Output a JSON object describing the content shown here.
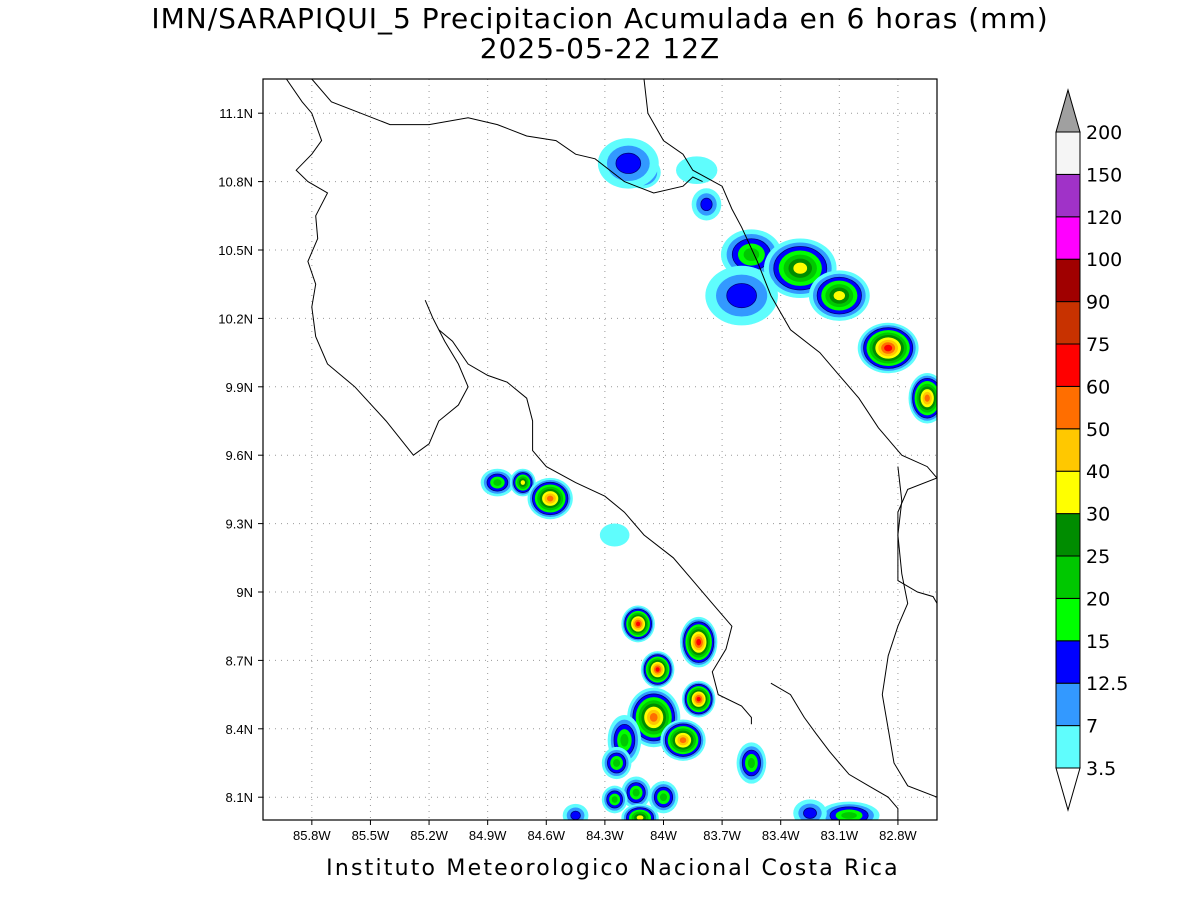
{
  "title": "IMN/SARAPIQUI_5 Precipitacion Acumulada en 6 horas (mm)",
  "subtitle": "2025-05-22 12Z",
  "footer": "Instituto Meteorologico Nacional Costa Rica",
  "map": {
    "lon_range": [
      -86.05,
      -82.6
    ],
    "lat_range": [
      8.0,
      11.25
    ],
    "x_ticks": [
      {
        "lon": -85.8,
        "label": "85.8W"
      },
      {
        "lon": -85.5,
        "label": "85.5W"
      },
      {
        "lon": -85.2,
        "label": "85.2W"
      },
      {
        "lon": -84.9,
        "label": "84.9W"
      },
      {
        "lon": -84.6,
        "label": "84.6W"
      },
      {
        "lon": -84.3,
        "label": "84.3W"
      },
      {
        "lon": -84.0,
        "label": "84W"
      },
      {
        "lon": -83.7,
        "label": "83.7W"
      },
      {
        "lon": -83.4,
        "label": "83.4W"
      },
      {
        "lon": -83.1,
        "label": "83.1W"
      },
      {
        "lon": -82.8,
        "label": "82.8W"
      }
    ],
    "y_ticks": [
      {
        "lat": 11.1,
        "label": "11.1N"
      },
      {
        "lat": 10.8,
        "label": "10.8N"
      },
      {
        "lat": 10.5,
        "label": "10.5N"
      },
      {
        "lat": 10.2,
        "label": "10.2N"
      },
      {
        "lat": 9.9,
        "label": "9.9N"
      },
      {
        "lat": 9.6,
        "label": "9.6N"
      },
      {
        "lat": 9.3,
        "label": "9.3N"
      },
      {
        "lat": 9.0,
        "label": "9N"
      },
      {
        "lat": 8.7,
        "label": "8.7N"
      },
      {
        "lat": 8.4,
        "label": "8.4N"
      },
      {
        "lat": 8.1,
        "label": "8.1N"
      }
    ],
    "grid": "dotted",
    "coastlines": [
      [
        [
          -85.93,
          11.25
        ],
        [
          -85.85,
          11.15
        ],
        [
          -85.8,
          11.1
        ],
        [
          -85.75,
          10.98
        ],
        [
          -85.8,
          10.92
        ],
        [
          -85.88,
          10.85
        ],
        [
          -85.82,
          10.8
        ],
        [
          -85.72,
          10.75
        ],
        [
          -85.78,
          10.65
        ],
        [
          -85.77,
          10.55
        ],
        [
          -85.82,
          10.45
        ],
        [
          -85.78,
          10.35
        ],
        [
          -85.8,
          10.25
        ],
        [
          -85.78,
          10.12
        ],
        [
          -85.72,
          10.0
        ],
        [
          -85.58,
          9.9
        ],
        [
          -85.42,
          9.75
        ],
        [
          -85.28,
          9.6
        ],
        [
          -85.2,
          9.65
        ],
        [
          -85.15,
          9.75
        ],
        [
          -85.05,
          9.82
        ],
        [
          -85.0,
          9.9
        ],
        [
          -85.05,
          10.0
        ],
        [
          -85.12,
          10.1
        ],
        [
          -85.18,
          10.2
        ],
        [
          -85.22,
          10.28
        ]
      ],
      [
        [
          -85.15,
          10.15
        ],
        [
          -85.08,
          10.1
        ],
        [
          -85.0,
          10.0
        ],
        [
          -84.9,
          9.95
        ],
        [
          -84.8,
          9.92
        ],
        [
          -84.7,
          9.85
        ],
        [
          -84.67,
          9.75
        ],
        [
          -84.67,
          9.62
        ],
        [
          -84.6,
          9.55
        ],
        [
          -84.45,
          9.48
        ],
        [
          -84.3,
          9.42
        ],
        [
          -84.2,
          9.35
        ],
        [
          -84.1,
          9.25
        ],
        [
          -83.95,
          9.15
        ],
        [
          -83.85,
          9.05
        ],
        [
          -83.75,
          8.95
        ],
        [
          -83.65,
          8.85
        ],
        [
          -83.68,
          8.75
        ],
        [
          -83.75,
          8.65
        ],
        [
          -83.72,
          8.55
        ],
        [
          -83.6,
          8.5
        ],
        [
          -83.55,
          8.45
        ],
        [
          -83.55,
          8.42
        ]
      ],
      [
        [
          -83.45,
          8.6
        ],
        [
          -83.35,
          8.55
        ],
        [
          -83.28,
          8.45
        ],
        [
          -83.22,
          8.38
        ],
        [
          -83.15,
          8.3
        ],
        [
          -83.1,
          8.25
        ],
        [
          -83.05,
          8.2
        ],
        [
          -82.95,
          8.15
        ],
        [
          -82.85,
          8.1
        ],
        [
          -82.8,
          8.05
        ],
        [
          -82.8,
          8.0
        ]
      ],
      [
        [
          -84.1,
          11.25
        ],
        [
          -84.08,
          11.1
        ],
        [
          -84.0,
          10.98
        ],
        [
          -83.9,
          10.92
        ],
        [
          -83.85,
          10.85
        ],
        [
          -83.7,
          10.78
        ],
        [
          -83.65,
          10.68
        ],
        [
          -83.6,
          10.6
        ],
        [
          -83.52,
          10.45
        ],
        [
          -83.45,
          10.3
        ],
        [
          -83.35,
          10.15
        ],
        [
          -83.2,
          10.05
        ],
        [
          -83.1,
          9.95
        ],
        [
          -83.0,
          9.85
        ],
        [
          -82.9,
          9.72
        ],
        [
          -82.78,
          9.6
        ],
        [
          -82.65,
          9.55
        ],
        [
          -82.6,
          9.5
        ]
      ],
      [
        [
          -82.6,
          9.5
        ],
        [
          -82.75,
          9.45
        ],
        [
          -82.8,
          9.35
        ],
        [
          -82.8,
          9.15
        ],
        [
          -82.8,
          9.05
        ],
        [
          -82.7,
          9.0
        ],
        [
          -82.62,
          8.98
        ],
        [
          -82.6,
          8.95
        ]
      ],
      [
        [
          -82.8,
          9.55
        ],
        [
          -82.78,
          9.4
        ],
        [
          -82.8,
          9.25
        ],
        [
          -82.78,
          9.08
        ],
        [
          -82.75,
          8.95
        ],
        [
          -82.8,
          8.85
        ],
        [
          -82.85,
          8.72
        ],
        [
          -82.88,
          8.55
        ],
        [
          -82.85,
          8.4
        ],
        [
          -82.82,
          8.25
        ],
        [
          -82.75,
          8.15
        ],
        [
          -82.6,
          8.1
        ]
      ],
      [
        [
          -85.8,
          11.25
        ],
        [
          -85.7,
          11.15
        ],
        [
          -85.55,
          11.1
        ],
        [
          -85.4,
          11.05
        ],
        [
          -85.2,
          11.05
        ],
        [
          -85.0,
          11.08
        ],
        [
          -84.85,
          11.05
        ],
        [
          -84.7,
          11.0
        ],
        [
          -84.55,
          10.98
        ],
        [
          -84.45,
          10.92
        ],
        [
          -84.35,
          10.9
        ],
        [
          -84.2,
          10.8
        ],
        [
          -84.05,
          10.75
        ],
        [
          -83.9,
          10.78
        ],
        [
          -83.85,
          10.82
        ],
        [
          -83.8,
          10.8
        ]
      ]
    ]
  },
  "precip_cells": [
    {
      "lon": -84.11,
      "lat": 10.84,
      "rx": 0.06,
      "ry": 0.04,
      "cls": "green"
    },
    {
      "lon": -84.18,
      "lat": 10.88,
      "rx": 0.12,
      "ry": 0.08,
      "cls": "blue"
    },
    {
      "lon": -83.83,
      "lat": 10.85,
      "rx": 0.07,
      "ry": 0.03,
      "cls": "light"
    },
    {
      "lon": -83.78,
      "lat": 10.7,
      "rx": 0.04,
      "ry": 0.04,
      "cls": "blue"
    },
    {
      "lon": -83.55,
      "lat": 10.48,
      "rx": 0.12,
      "ry": 0.08,
      "cls": "green"
    },
    {
      "lon": -83.3,
      "lat": 10.42,
      "rx": 0.15,
      "ry": 0.1,
      "cls": "yellow"
    },
    {
      "lon": -83.1,
      "lat": 10.3,
      "rx": 0.12,
      "ry": 0.08,
      "cls": "yellow"
    },
    {
      "lon": -82.85,
      "lat": 10.07,
      "rx": 0.12,
      "ry": 0.08,
      "cls": "red"
    },
    {
      "lon": -82.65,
      "lat": 9.85,
      "rx": 0.06,
      "ry": 0.08,
      "cls": "orange"
    },
    {
      "lon": -83.6,
      "lat": 10.3,
      "rx": 0.15,
      "ry": 0.1,
      "cls": "blue"
    },
    {
      "lon": -84.85,
      "lat": 9.48,
      "rx": 0.05,
      "ry": 0.03,
      "cls": "green"
    },
    {
      "lon": -84.72,
      "lat": 9.48,
      "rx": 0.03,
      "ry": 0.03,
      "cls": "yellow"
    },
    {
      "lon": -84.58,
      "lat": 9.41,
      "rx": 0.08,
      "ry": 0.06,
      "cls": "orange"
    },
    {
      "lon": -84.25,
      "lat": 9.25,
      "rx": 0.04,
      "ry": 0.02,
      "cls": "light"
    },
    {
      "lon": -84.13,
      "lat": 8.86,
      "rx": 0.05,
      "ry": 0.05,
      "cls": "red"
    },
    {
      "lon": -83.82,
      "lat": 8.78,
      "rx": 0.06,
      "ry": 0.08,
      "cls": "red"
    },
    {
      "lon": -84.03,
      "lat": 8.66,
      "rx": 0.05,
      "ry": 0.05,
      "cls": "red"
    },
    {
      "lon": -83.82,
      "lat": 8.53,
      "rx": 0.05,
      "ry": 0.05,
      "cls": "red"
    },
    {
      "lon": -84.05,
      "lat": 8.45,
      "rx": 0.1,
      "ry": 0.1,
      "cls": "orange"
    },
    {
      "lon": -83.9,
      "lat": 8.35,
      "rx": 0.08,
      "ry": 0.06,
      "cls": "orange"
    },
    {
      "lon": -84.2,
      "lat": 8.35,
      "rx": 0.05,
      "ry": 0.08,
      "cls": "green"
    },
    {
      "lon": -84.24,
      "lat": 8.25,
      "rx": 0.04,
      "ry": 0.04,
      "cls": "green"
    },
    {
      "lon": -83.55,
      "lat": 8.25,
      "rx": 0.04,
      "ry": 0.06,
      "cls": "green"
    },
    {
      "lon": -84.14,
      "lat": 8.12,
      "rx": 0.04,
      "ry": 0.04,
      "cls": "green"
    },
    {
      "lon": -84.0,
      "lat": 8.1,
      "rx": 0.04,
      "ry": 0.04,
      "cls": "green"
    },
    {
      "lon": -84.25,
      "lat": 8.09,
      "rx": 0.03,
      "ry": 0.03,
      "cls": "green"
    },
    {
      "lon": -84.12,
      "lat": 8.01,
      "rx": 0.06,
      "ry": 0.03,
      "cls": "yellow"
    },
    {
      "lon": -83.05,
      "lat": 8.02,
      "rx": 0.12,
      "ry": 0.03,
      "cls": "green"
    },
    {
      "lon": -83.25,
      "lat": 8.03,
      "rx": 0.05,
      "ry": 0.03,
      "cls": "blue"
    },
    {
      "lon": -84.45,
      "lat": 8.02,
      "rx": 0.03,
      "ry": 0.02,
      "cls": "blue"
    }
  ],
  "colorbar": {
    "arrow_top_color": "#a0a0a0",
    "arrow_bottom_color": "#ffffff",
    "bins": [
      {
        "label": "3.5",
        "color": "#5ffdfd"
      },
      {
        "label": "7",
        "color": "#3399ff"
      },
      {
        "label": "12.5",
        "color": "#0000ff"
      },
      {
        "label": "15",
        "color": "#00ff00"
      },
      {
        "label": "20",
        "color": "#00c800"
      },
      {
        "label": "25",
        "color": "#008c00"
      },
      {
        "label": "30",
        "color": "#ffff00"
      },
      {
        "label": "40",
        "color": "#ffc800"
      },
      {
        "label": "50",
        "color": "#ff6e00"
      },
      {
        "label": "60",
        "color": "#ff0000"
      },
      {
        "label": "75",
        "color": "#c83200"
      },
      {
        "label": "90",
        "color": "#a00000"
      },
      {
        "label": "100",
        "color": "#ff00ff"
      },
      {
        "label": "120",
        "color": "#a032c8"
      },
      {
        "label": "150",
        "color": "#f5f5f5"
      },
      {
        "label": "200",
        "color": null
      }
    ]
  }
}
